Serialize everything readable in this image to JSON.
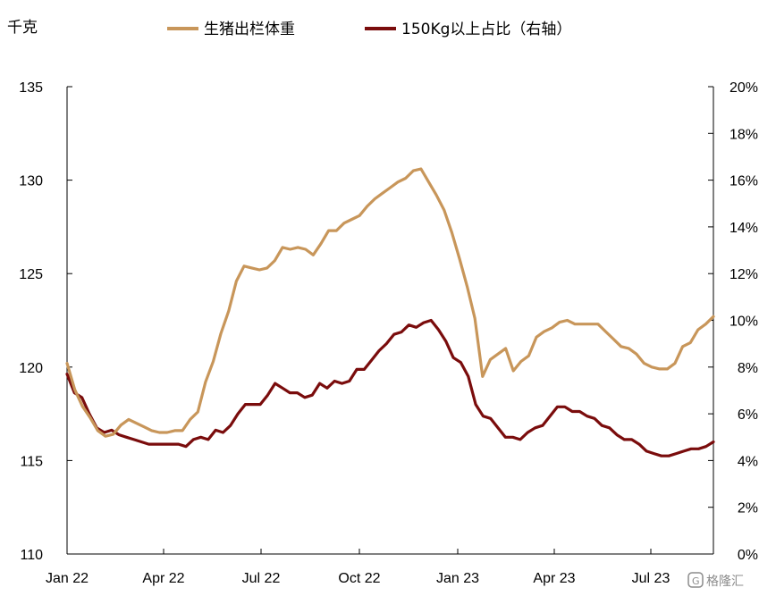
{
  "chart_data": {
    "type": "line",
    "left_unit": "千克",
    "x_ticks": [
      "Jan 22",
      "Apr 22",
      "Jul 22",
      "Oct 22",
      "Jan 23",
      "Apr 23",
      "Jul 23"
    ],
    "y_left": {
      "min": 110,
      "max": 135,
      "ticks": [
        110,
        115,
        120,
        125,
        130,
        135
      ]
    },
    "y_right": {
      "min": 0,
      "max": 20,
      "ticks": [
        "0%",
        "2%",
        "4%",
        "6%",
        "8%",
        "10%",
        "12%",
        "14%",
        "16%",
        "18%",
        "20%"
      ]
    },
    "legend": "top-center",
    "grid": false,
    "series": [
      {
        "name": "生猪出栏体重",
        "axis": "left",
        "color": "#C8965A",
        "values": [
          120.2,
          118.8,
          117.9,
          117.3,
          116.6,
          116.3,
          116.4,
          116.9,
          117.2,
          117.0,
          116.8,
          116.6,
          116.5,
          116.5,
          116.6,
          116.6,
          117.2,
          117.6,
          119.2,
          120.3,
          121.8,
          123.0,
          124.6,
          125.4,
          125.3,
          125.2,
          125.3,
          125.7,
          126.4,
          126.3,
          126.4,
          126.3,
          126.0,
          126.6,
          127.3,
          127.3,
          127.7,
          127.9,
          128.1,
          128.6,
          129.0,
          129.3,
          129.6,
          129.9,
          130.1,
          130.5,
          130.6,
          129.9,
          129.2,
          128.4,
          127.2,
          125.8,
          124.3,
          122.6,
          119.5,
          120.4,
          120.7,
          121.0,
          119.8,
          120.3,
          120.6,
          121.6,
          121.9,
          122.1,
          122.4,
          122.5,
          122.3,
          122.3,
          122.3,
          122.3,
          121.9,
          121.5,
          121.1,
          121.0,
          120.7,
          120.2,
          120.0,
          119.9,
          119.9,
          120.2,
          121.1,
          121.3,
          122.0,
          122.3,
          122.7
        ]
      },
      {
        "name": "150Kg以上占比（右轴）",
        "axis": "right",
        "color": "#7A0C0C",
        "values": [
          7.7,
          6.9,
          6.7,
          6.0,
          5.4,
          5.2,
          5.3,
          5.1,
          5.0,
          4.9,
          4.8,
          4.7,
          4.7,
          4.7,
          4.7,
          4.7,
          4.6,
          4.9,
          5.0,
          4.9,
          5.3,
          5.2,
          5.5,
          6.0,
          6.4,
          6.4,
          6.4,
          6.8,
          7.3,
          7.1,
          6.9,
          6.9,
          6.7,
          6.8,
          7.3,
          7.1,
          7.4,
          7.3,
          7.4,
          7.9,
          7.9,
          8.3,
          8.7,
          9.0,
          9.4,
          9.5,
          9.8,
          9.7,
          9.9,
          10.0,
          9.6,
          9.1,
          8.4,
          8.2,
          7.6,
          6.4,
          5.9,
          5.8,
          5.4,
          5.0,
          5.0,
          4.9,
          5.2,
          5.4,
          5.5,
          5.9,
          6.3,
          6.3,
          6.1,
          6.1,
          5.9,
          5.8,
          5.5,
          5.4,
          5.1,
          4.9,
          4.9,
          4.7,
          4.4,
          4.3,
          4.2,
          4.2,
          4.3,
          4.4,
          4.5,
          4.5,
          4.6,
          4.8
        ]
      }
    ]
  },
  "watermark": {
    "text": "格隆汇",
    "icon": "brand-logo-icon"
  }
}
